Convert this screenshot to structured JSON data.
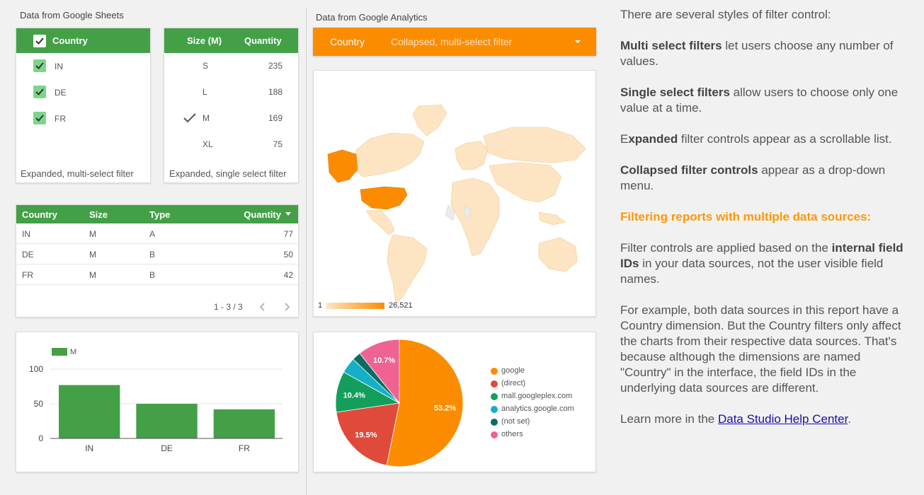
{
  "sheets": {
    "section_title": "Data from Google Sheets",
    "multi_filter": {
      "header": "Country",
      "items": [
        "IN",
        "DE",
        "FR"
      ],
      "caption": "Expanded, multi-select filter"
    },
    "single_filter": {
      "col_size": "Size (M)",
      "col_qty": "Quantity",
      "rows": [
        {
          "size": "S",
          "qty": "235"
        },
        {
          "size": "L",
          "qty": "188"
        },
        {
          "size": "M",
          "qty": "169"
        },
        {
          "size": "XL",
          "qty": "75"
        }
      ],
      "caption": "Expanded, single select filter"
    },
    "table": {
      "headers": [
        "Country",
        "Size",
        "Type",
        "Quantity"
      ],
      "rows": [
        [
          "IN",
          "M",
          "A",
          "77"
        ],
        [
          "DE",
          "M",
          "B",
          "50"
        ],
        [
          "FR",
          "M",
          "B",
          "42"
        ]
      ],
      "pagination": "1 - 3 / 3"
    }
  },
  "analytics": {
    "section_title": "Data from Google Analytics",
    "dropdown": {
      "label": "Country",
      "value": "Collapsed, multi-select filter"
    },
    "map_legend": {
      "min": "1",
      "max": "26,521"
    }
  },
  "chart_data": [
    {
      "type": "bar",
      "categories": [
        "IN",
        "DE",
        "FR"
      ],
      "series": [
        {
          "name": "M",
          "values": [
            77,
            50,
            42
          ]
        }
      ],
      "ylim": [
        0,
        100
      ],
      "yticks": [
        "0",
        "50",
        "100"
      ],
      "legend_placement": "top-left",
      "grid": true
    },
    {
      "type": "pie",
      "slices": [
        {
          "label": "google",
          "value": 53.2,
          "color": "#fb8c00",
          "display": "53.2%"
        },
        {
          "label": "(direct)",
          "value": 19.5,
          "color": "#e04a3a",
          "display": "19.5%"
        },
        {
          "label": "mall.googleplex.com",
          "value": 10.4,
          "color": "#139f5b",
          "display": "10.4%"
        },
        {
          "label": "analytics.google.com",
          "value": 4.0,
          "color": "#14b0c8",
          "display": ""
        },
        {
          "label": "(not set)",
          "value": 2.2,
          "color": "#0a6e63",
          "display": ""
        },
        {
          "label": "others",
          "value": 10.7,
          "color": "#f06292",
          "display": "10.7%"
        }
      ],
      "legend_placement": "right"
    }
  ],
  "right_panel": {
    "intro": "There are several styles of filter control:",
    "p1_bold": "Multi select filters",
    "p1_rest": " let users choose any number of values.",
    "p2_bold": "Single select filters",
    "p2_rest": " allow users to choose only one value at a time.",
    "p3_pre": "E",
    "p3_bold": "xpanded",
    "p3_rest": " filter controls appear as a scrollable list.",
    "p4_bold": "Collapsed filter controls",
    "p4_rest": " appear as a drop-down menu.",
    "heading": "Filtering reports with multiple data sources:",
    "p5_pre": "Filter controls are applied based on the ",
    "p5_bold": "internal field IDs",
    "p5_rest": " in your data sources, not the user visible field names.",
    "p6": "For example, both data sources in this report have a Country dimension. But the Country filters only affect the charts from their respective data sources. That's because although the dimensions are named \"Country\" in the interface, the field IDs in the underlying data sources are different.",
    "p7_pre": "Learn more in the ",
    "p7_link": "Data Studio Help Center",
    "p7_post": "."
  },
  "colors": {
    "green": "#43a047",
    "orange": "#fb8c00",
    "map_light": "#fde5c3",
    "map_dark": "#fb8c00"
  }
}
